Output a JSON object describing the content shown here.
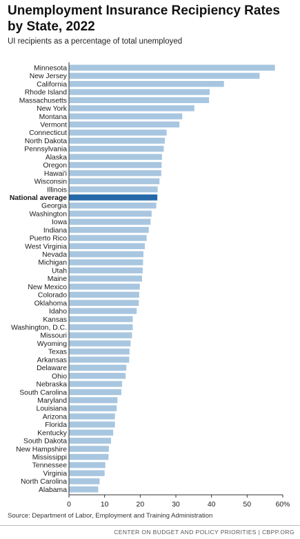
{
  "header": {
    "title": "Unemployment Insurance Recipiency Rates by State, 2022",
    "subtitle": "UI recipients as a percentage of total unemployed"
  },
  "footer": {
    "source": "Source: Department of Labor, Employment and Training Administration",
    "credit": "CENTER ON BUDGET AND POLICY PRIORITIES | CBPP.ORG"
  },
  "colors": {
    "bar": "#a8c6e0",
    "highlight": "#2468a8",
    "axis": "#333333"
  },
  "chart_data": {
    "type": "bar",
    "orientation": "horizontal",
    "title": "Unemployment Insurance Recipiency Rates by State, 2022",
    "subtitle": "UI recipients as a percentage of total unemployed",
    "xlim": [
      0,
      60
    ],
    "xticks": [
      0,
      10,
      20,
      30,
      40,
      50,
      60
    ],
    "xtick_labels": [
      "0",
      "10",
      "20",
      "30",
      "40",
      "50",
      "60%"
    ],
    "grid": false,
    "highlight": "National average",
    "categories": [
      "Minnesota",
      "New Jersey",
      "California",
      "Rhode Island",
      "Massachusetts",
      "New York",
      "Montana",
      "Vermont",
      "Connecticut",
      "North Dakota",
      "Pennsylvania",
      "Alaska",
      "Oregon",
      "Hawai'i",
      "Wisconsin",
      "Illinois",
      "National average",
      "Georgia",
      "Washington",
      "Iowa",
      "Indiana",
      "Puerto Rico",
      "West Virginia",
      "Nevada",
      "Michigan",
      "Utah",
      "Maine",
      "New Mexico",
      "Colorado",
      "Oklahoma",
      "Idaho",
      "Kansas",
      "Washington, D.C.",
      "Missouri",
      "Wyoming",
      "Texas",
      "Arkansas",
      "Delaware",
      "Ohio",
      "Nebraska",
      "South Carolina",
      "Maryland",
      "Louisiana",
      "Arizona",
      "Florida",
      "Kentucky",
      "South Dakota",
      "New Hampshire",
      "Mississippi",
      "Tennessee",
      "Virginia",
      "North Carolina",
      "Alabama"
    ],
    "values": [
      57.8,
      53.5,
      43.5,
      39.5,
      39.3,
      35.2,
      31.8,
      31.0,
      27.4,
      26.9,
      26.6,
      26.1,
      26.0,
      25.9,
      25.4,
      24.9,
      24.8,
      24.5,
      23.2,
      22.9,
      22.4,
      21.8,
      21.3,
      20.9,
      20.8,
      20.7,
      20.5,
      19.9,
      19.7,
      19.6,
      19.0,
      17.9,
      17.9,
      17.7,
      17.3,
      17.0,
      16.9,
      16.1,
      15.9,
      14.9,
      14.7,
      13.6,
      13.4,
      12.9,
      12.9,
      12.4,
      11.8,
      11.2,
      11.1,
      10.2,
      10.0,
      8.6,
      8.2
    ]
  }
}
